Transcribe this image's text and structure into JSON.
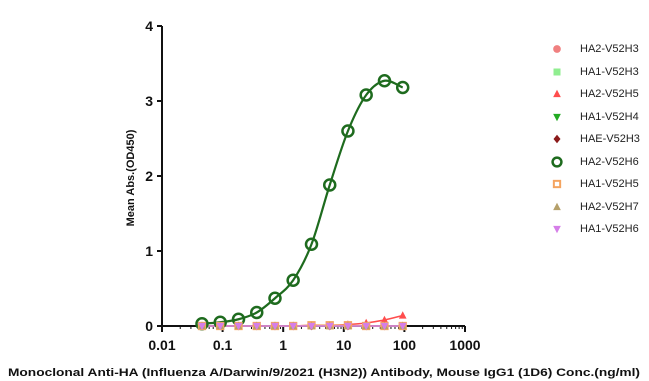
{
  "chart_data": {
    "type": "scatter",
    "title": "",
    "xlabel": "Monoclonal Anti-HA (Influenza A/Darwin/9/2021 (H3N2)) Antibody, Mouse IgG1 (1D6) Conc.(ng/ml)",
    "ylabel": "Mean Abs.(OD450)",
    "xscale": "log",
    "xlim": [
      0.01,
      1000
    ],
    "ylim": [
      0,
      4
    ],
    "xticks": [
      0.01,
      0.1,
      1,
      10,
      100,
      1000
    ],
    "xtick_labels": [
      "0.01",
      "0.1",
      "1",
      "10",
      "100",
      "1000"
    ],
    "yticks": [
      0,
      1,
      2,
      3,
      4
    ],
    "ytick_labels": [
      "0",
      "1",
      "2",
      "3",
      "4"
    ],
    "grid": false,
    "legend_position": "right",
    "x": [
      0.0457,
      0.0914,
      0.183,
      0.366,
      0.732,
      1.46,
      2.93,
      5.86,
      11.7,
      23.4,
      46.9,
      93.8
    ],
    "series": [
      {
        "name": "HA2-V52H3",
        "color": "#f08080",
        "marker": "circle",
        "values": [
          0.0,
          0.0,
          0.0,
          0.0,
          0.0,
          0.0,
          0.0,
          0.0,
          0.0,
          0.0,
          0.0,
          0.0
        ]
      },
      {
        "name": "HA1-V52H3",
        "color": "#90ee90",
        "marker": "square",
        "values": [
          0.0,
          0.0,
          0.0,
          0.0,
          0.0,
          0.0,
          0.0,
          0.0,
          0.0,
          0.0,
          0.0,
          0.0
        ]
      },
      {
        "name": "HA2-V52H5",
        "color": "#ff4d4d",
        "marker": "triangle-up",
        "values": [
          0.0,
          0.0,
          0.0,
          0.0,
          0.0,
          0.0,
          0.01,
          0.01,
          0.02,
          0.04,
          0.08,
          0.14
        ]
      },
      {
        "name": "HA1-V52H4",
        "color": "#22aa22",
        "marker": "triangle-down",
        "values": [
          0.0,
          0.0,
          0.0,
          0.0,
          0.0,
          0.0,
          0.0,
          0.0,
          0.0,
          0.0,
          0.0,
          0.0
        ]
      },
      {
        "name": "HAE-V52H3",
        "color": "#8b1a1a",
        "marker": "diamond",
        "values": [
          0.0,
          0.0,
          0.0,
          0.0,
          0.0,
          0.0,
          0.0,
          0.0,
          0.0,
          0.0,
          0.0,
          0.0
        ]
      },
      {
        "name": "HA2-V52H6",
        "color": "#1e6b1e",
        "marker": "open-circle",
        "values": [
          0.03,
          0.05,
          0.09,
          0.18,
          0.37,
          0.61,
          1.09,
          1.88,
          2.6,
          3.08,
          3.27,
          3.18
        ]
      },
      {
        "name": "HA1-V52H5",
        "color": "#f4a460",
        "marker": "open-square",
        "values": [
          0.0,
          0.0,
          0.0,
          0.0,
          0.0,
          0.0,
          0.01,
          0.01,
          0.01,
          0.0,
          0.0,
          0.0
        ]
      },
      {
        "name": "HA2-V52H7",
        "color": "#b5a06a",
        "marker": "triangle-up",
        "values": [
          0.0,
          0.0,
          0.0,
          0.0,
          0.0,
          0.0,
          0.0,
          0.0,
          0.0,
          0.0,
          0.0,
          0.0
        ]
      },
      {
        "name": "HA1-V52H6",
        "color": "#d57ee8",
        "marker": "triangle-down",
        "values": [
          0.0,
          0.0,
          0.0,
          0.0,
          0.0,
          0.0,
          0.0,
          0.0,
          0.0,
          0.0,
          0.0,
          0.0
        ]
      }
    ]
  }
}
